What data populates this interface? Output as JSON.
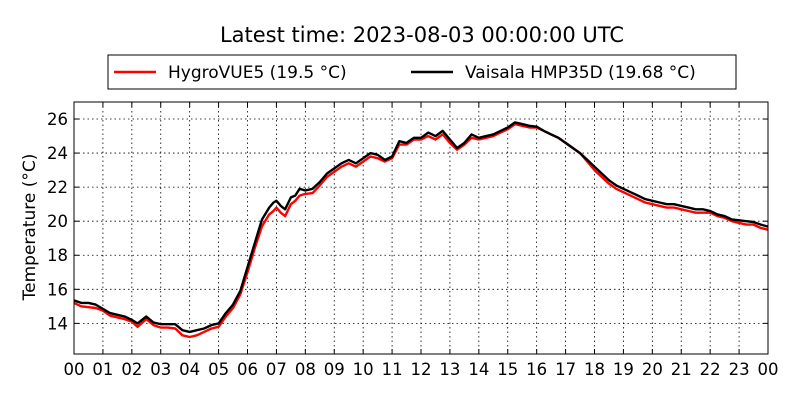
{
  "chart_data": {
    "type": "line",
    "title": "Latest time: 2023-08-03 00:00:00 UTC",
    "xlabel": "",
    "ylabel": "Temperature (°C)",
    "xlim": [
      0,
      24
    ],
    "ylim": [
      12.2,
      27
    ],
    "x_ticks": [
      0,
      1,
      2,
      3,
      4,
      5,
      6,
      7,
      8,
      9,
      10,
      11,
      12,
      13,
      14,
      15,
      16,
      17,
      18,
      19,
      20,
      21,
      22,
      23,
      24
    ],
    "x_tick_labels": [
      "00",
      "01",
      "02",
      "03",
      "04",
      "05",
      "06",
      "07",
      "08",
      "09",
      "10",
      "11",
      "12",
      "13",
      "14",
      "15",
      "16",
      "17",
      "18",
      "19",
      "20",
      "21",
      "22",
      "23",
      "00"
    ],
    "y_ticks": [
      14,
      16,
      18,
      20,
      22,
      24,
      26
    ],
    "y_tick_labels": [
      "14",
      "16",
      "18",
      "20",
      "22",
      "24",
      "26"
    ],
    "grid": true,
    "legend_position": "top",
    "series": [
      {
        "name": "HygroVUE5 (19.5 °C)",
        "color": "#ff0000",
        "x": [
          0,
          0.25,
          0.5,
          0.75,
          1,
          1.25,
          1.5,
          1.75,
          2,
          2.2,
          2.5,
          2.75,
          3,
          3.25,
          3.5,
          3.75,
          4,
          4.25,
          4.5,
          4.75,
          5,
          5.25,
          5.5,
          5.75,
          6,
          6.25,
          6.5,
          6.75,
          6.9,
          7,
          7.15,
          7.3,
          7.5,
          7.65,
          7.8,
          8,
          8.25,
          8.5,
          8.75,
          9,
          9.25,
          9.5,
          9.75,
          10,
          10.25,
          10.5,
          10.75,
          11,
          11.25,
          11.5,
          11.75,
          12,
          12.25,
          12.5,
          12.75,
          13,
          13.25,
          13.5,
          13.75,
          14,
          14.25,
          14.5,
          14.75,
          15,
          15.25,
          15.5,
          15.75,
          16,
          16.25,
          16.5,
          16.75,
          17,
          17.25,
          17.5,
          17.75,
          18,
          18.25,
          18.5,
          18.75,
          19,
          19.25,
          19.5,
          19.75,
          20,
          20.25,
          20.5,
          20.75,
          21,
          21.25,
          21.5,
          21.75,
          22,
          22.25,
          22.5,
          22.75,
          23,
          23.25,
          23.5,
          23.75,
          24
        ],
        "values": [
          15.2,
          15.0,
          14.95,
          14.9,
          14.75,
          14.45,
          14.35,
          14.25,
          14.1,
          13.8,
          14.25,
          13.9,
          13.75,
          13.75,
          13.7,
          13.3,
          13.2,
          13.3,
          13.5,
          13.7,
          13.8,
          14.4,
          14.9,
          15.7,
          17.0,
          18.4,
          19.7,
          20.4,
          20.6,
          20.8,
          20.5,
          20.3,
          21.0,
          21.2,
          21.5,
          21.6,
          21.65,
          22.1,
          22.6,
          22.9,
          23.2,
          23.4,
          23.2,
          23.5,
          23.8,
          23.7,
          23.5,
          23.7,
          24.5,
          24.5,
          24.8,
          24.8,
          25.0,
          24.8,
          25.1,
          24.6,
          24.2,
          24.5,
          24.9,
          24.8,
          24.9,
          25.0,
          25.2,
          25.4,
          25.7,
          25.6,
          25.5,
          25.5,
          25.3,
          25.1,
          24.9,
          24.6,
          24.3,
          24.0,
          23.5,
          23.0,
          22.6,
          22.2,
          21.9,
          21.7,
          21.5,
          21.3,
          21.1,
          21.0,
          20.9,
          20.8,
          20.8,
          20.7,
          20.6,
          20.5,
          20.5,
          20.5,
          20.3,
          20.2,
          20.0,
          19.9,
          19.8,
          19.8,
          19.6,
          19.5
        ]
      },
      {
        "name": "Vaisala HMP35D (19.68 °C)",
        "color": "#000000",
        "x": [
          0,
          0.25,
          0.5,
          0.75,
          1,
          1.25,
          1.5,
          1.75,
          2,
          2.2,
          2.5,
          2.75,
          3,
          3.25,
          3.5,
          3.75,
          4,
          4.25,
          4.5,
          4.75,
          5,
          5.25,
          5.5,
          5.75,
          6,
          6.25,
          6.5,
          6.75,
          6.9,
          7,
          7.15,
          7.3,
          7.5,
          7.65,
          7.8,
          8,
          8.25,
          8.5,
          8.75,
          9,
          9.25,
          9.5,
          9.75,
          10,
          10.25,
          10.5,
          10.75,
          11,
          11.25,
          11.5,
          11.75,
          12,
          12.25,
          12.5,
          12.75,
          13,
          13.25,
          13.5,
          13.75,
          14,
          14.25,
          14.5,
          14.75,
          15,
          15.25,
          15.5,
          15.75,
          16,
          16.25,
          16.5,
          16.75,
          17,
          17.25,
          17.5,
          17.75,
          18,
          18.25,
          18.5,
          18.75,
          19,
          19.25,
          19.5,
          19.75,
          20,
          20.25,
          20.5,
          20.75,
          21,
          21.25,
          21.5,
          21.75,
          22,
          22.25,
          22.5,
          22.75,
          23,
          23.25,
          23.5,
          23.75,
          24
        ],
        "values": [
          15.35,
          15.2,
          15.2,
          15.1,
          14.85,
          14.6,
          14.5,
          14.4,
          14.2,
          14.0,
          14.4,
          14.05,
          13.95,
          13.95,
          13.95,
          13.6,
          13.5,
          13.6,
          13.7,
          13.9,
          14.0,
          14.6,
          15.1,
          15.9,
          17.3,
          18.7,
          20.1,
          20.8,
          21.1,
          21.2,
          20.9,
          20.7,
          21.4,
          21.5,
          21.9,
          21.8,
          21.9,
          22.3,
          22.8,
          23.1,
          23.4,
          23.6,
          23.4,
          23.7,
          24.0,
          23.9,
          23.6,
          23.8,
          24.7,
          24.6,
          24.9,
          24.9,
          25.2,
          25.0,
          25.3,
          24.8,
          24.3,
          24.6,
          25.1,
          24.9,
          25.0,
          25.1,
          25.3,
          25.5,
          25.8,
          25.7,
          25.6,
          25.55,
          25.3,
          25.1,
          24.9,
          24.6,
          24.3,
          24.0,
          23.6,
          23.2,
          22.8,
          22.4,
          22.1,
          21.9,
          21.7,
          21.5,
          21.3,
          21.2,
          21.1,
          21.0,
          21.0,
          20.9,
          20.8,
          20.7,
          20.7,
          20.6,
          20.4,
          20.3,
          20.1,
          20.05,
          20.0,
          19.95,
          19.8,
          19.68
        ]
      }
    ]
  }
}
